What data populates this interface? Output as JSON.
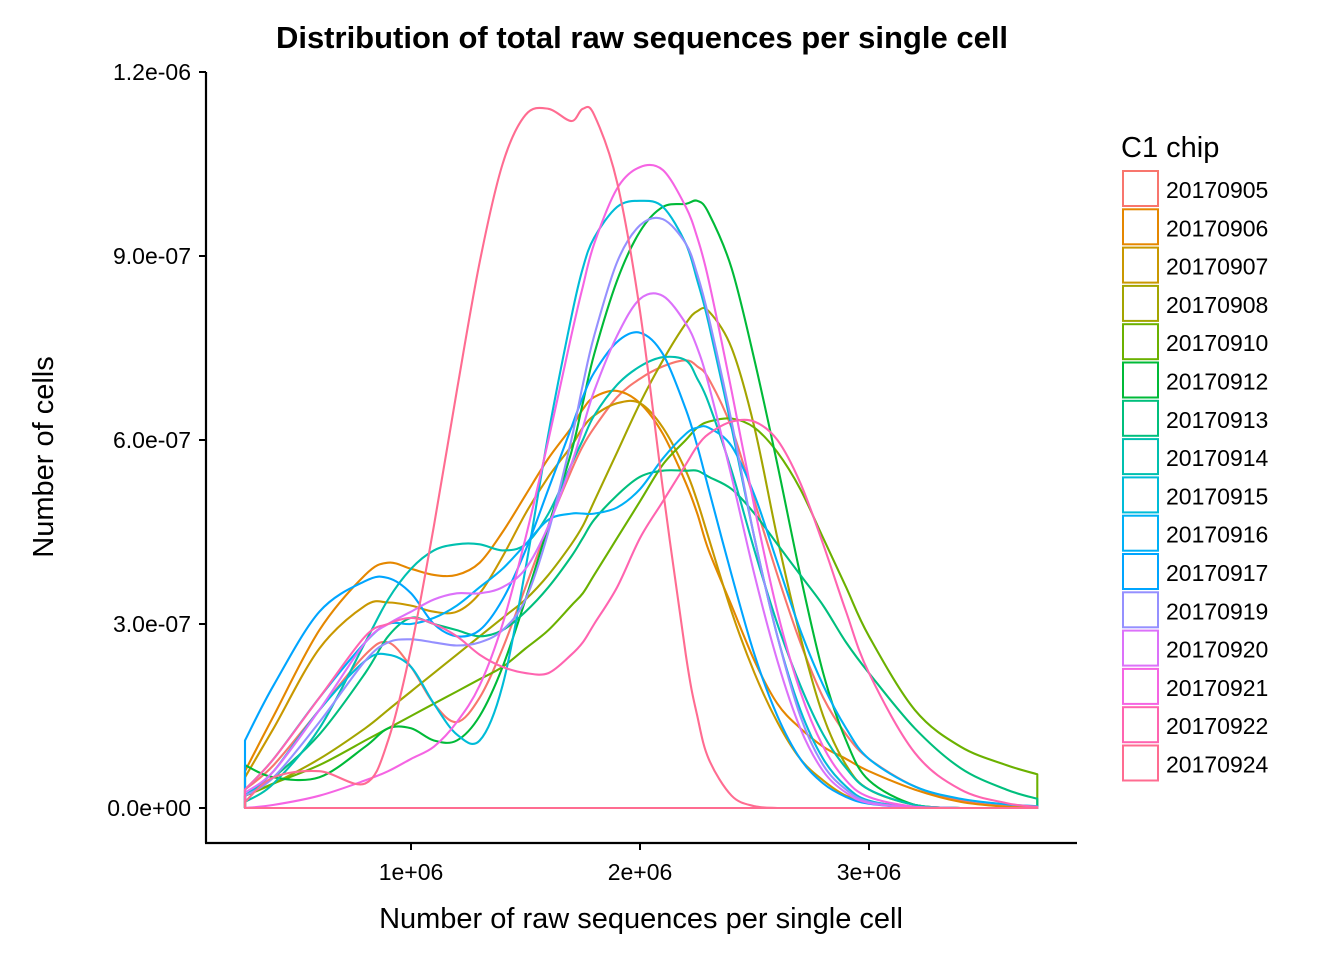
{
  "chart_data": {
    "type": "line",
    "subtype": "density",
    "title": "Distribution of total raw sequences per single cell",
    "xlabel": "Number of raw sequences per single cell",
    "ylabel": "Number of cells",
    "xlim": [
      275000,
      3735000
    ],
    "ylim": [
      0,
      1.2e-06
    ],
    "x_ticks": [
      1000000,
      2000000,
      3000000
    ],
    "x_tick_labels": [
      "1e+06",
      "2e+06",
      "3e+06"
    ],
    "y_ticks": [
      0,
      3e-07,
      6e-07,
      9e-07,
      1.2e-06
    ],
    "y_tick_labels": [
      "0.0e+00",
      "3.0e-07",
      "6.0e-07",
      "9.0e-07",
      "1.2e-06"
    ],
    "grid": false,
    "legend": {
      "title": "C1 chip",
      "position": "right"
    },
    "x_sample_unit": "1e6 sequences",
    "y_sample_unit": "1e-7",
    "x_samples": [
      0.275,
      0.4,
      0.6,
      0.8,
      0.9,
      1.0,
      1.1,
      1.2,
      1.3,
      1.4,
      1.5,
      1.6,
      1.7,
      1.75,
      1.8,
      1.9,
      2.0,
      2.1,
      2.2,
      2.25,
      2.3,
      2.4,
      2.5,
      2.6,
      2.7,
      2.8,
      2.9,
      3.0,
      3.2,
      3.4,
      3.6,
      3.735
    ],
    "series": [
      {
        "name": "20170905",
        "color": "#F8766D",
        "values": [
          0.3,
          0.7,
          1.6,
          2.5,
          2.7,
          2.3,
          1.7,
          1.4,
          1.8,
          2.6,
          3.6,
          4.6,
          5.5,
          5.9,
          6.2,
          6.7,
          7.0,
          7.2,
          7.3,
          7.2,
          7.0,
          6.2,
          5.0,
          3.8,
          2.7,
          1.8,
          1.2,
          0.8,
          0.35,
          0.12,
          0.03,
          0.0
        ]
      },
      {
        "name": "20170906",
        "color": "#E58700",
        "values": [
          0.6,
          1.5,
          2.9,
          3.8,
          4.0,
          3.9,
          3.8,
          3.8,
          4.0,
          4.5,
          5.1,
          5.7,
          6.2,
          6.5,
          6.7,
          6.8,
          6.6,
          6.1,
          5.3,
          4.8,
          4.2,
          3.3,
          2.4,
          1.7,
          1.3,
          1.0,
          0.8,
          0.6,
          0.3,
          0.1,
          0.02,
          0.0
        ]
      },
      {
        "name": "20170907",
        "color": "#C99800",
        "values": [
          0.5,
          1.3,
          2.6,
          3.3,
          3.35,
          3.3,
          3.2,
          3.2,
          3.5,
          4.1,
          4.8,
          5.4,
          5.9,
          6.2,
          6.4,
          6.6,
          6.6,
          6.2,
          5.5,
          5.0,
          4.4,
          3.2,
          2.2,
          1.4,
          0.8,
          0.45,
          0.2,
          0.1,
          0.02,
          0.0,
          0.0,
          0.0
        ]
      },
      {
        "name": "20170908",
        "color": "#A3A500",
        "values": [
          0.2,
          0.4,
          0.8,
          1.3,
          1.6,
          1.9,
          2.2,
          2.5,
          2.8,
          3.1,
          3.4,
          3.8,
          4.3,
          4.6,
          5.0,
          5.8,
          6.6,
          7.3,
          7.9,
          8.1,
          8.1,
          7.5,
          6.2,
          4.4,
          2.8,
          1.5,
          0.7,
          0.3,
          0.05,
          0.0,
          0.0,
          0.0
        ]
      },
      {
        "name": "20170910",
        "color": "#6BB100",
        "values": [
          0.2,
          0.4,
          0.7,
          1.1,
          1.3,
          1.5,
          1.7,
          1.9,
          2.1,
          2.3,
          2.6,
          2.9,
          3.3,
          3.5,
          3.8,
          4.4,
          5.0,
          5.6,
          6.0,
          6.2,
          6.3,
          6.35,
          6.2,
          5.8,
          5.2,
          4.4,
          3.6,
          2.8,
          1.6,
          1.0,
          0.7,
          0.55
        ]
      },
      {
        "name": "20170912",
        "color": "#00BA38",
        "values": [
          0.7,
          0.5,
          0.5,
          1.0,
          1.3,
          1.3,
          1.1,
          1.1,
          1.5,
          2.3,
          3.4,
          4.6,
          5.8,
          6.6,
          7.4,
          8.6,
          9.4,
          9.8,
          9.85,
          9.9,
          9.7,
          8.8,
          7.3,
          5.6,
          3.8,
          2.2,
          1.1,
          0.45,
          0.05,
          0.0,
          0.0,
          0.0
        ]
      },
      {
        "name": "20170913",
        "color": "#00BF7D",
        "values": [
          0.2,
          0.5,
          1.2,
          2.2,
          2.8,
          3.1,
          3.0,
          2.9,
          2.8,
          2.9,
          3.2,
          3.6,
          4.1,
          4.4,
          4.7,
          5.1,
          5.4,
          5.5,
          5.5,
          5.5,
          5.4,
          5.2,
          4.8,
          4.3,
          3.8,
          3.3,
          2.7,
          2.2,
          1.3,
          0.65,
          0.3,
          0.15
        ]
      },
      {
        "name": "20170914",
        "color": "#00C0AF",
        "values": [
          0.1,
          0.4,
          1.3,
          2.7,
          3.4,
          3.9,
          4.2,
          4.3,
          4.3,
          4.2,
          4.3,
          4.8,
          5.6,
          6.0,
          6.4,
          6.9,
          7.2,
          7.35,
          7.3,
          7.0,
          6.6,
          5.5,
          4.2,
          3.0,
          2.0,
          1.2,
          0.65,
          0.3,
          0.05,
          0.0,
          0.0,
          0.0
        ]
      },
      {
        "name": "20170915",
        "color": "#00BCD8",
        "values": [
          0.2,
          0.6,
          1.6,
          2.4,
          2.5,
          2.3,
          1.7,
          1.2,
          1.1,
          2.0,
          3.9,
          6.1,
          8.0,
          8.8,
          9.3,
          9.8,
          9.9,
          9.8,
          9.2,
          8.6,
          7.9,
          6.2,
          4.4,
          2.8,
          1.6,
          0.8,
          0.35,
          0.12,
          0.01,
          0.0,
          0.0,
          0.0
        ]
      },
      {
        "name": "20170916",
        "color": "#00B0F6",
        "values": [
          0.3,
          0.8,
          1.8,
          2.7,
          3.0,
          3.0,
          3.1,
          3.3,
          3.6,
          3.9,
          4.3,
          4.7,
          4.8,
          4.8,
          4.8,
          4.9,
          5.2,
          5.7,
          6.1,
          6.2,
          6.2,
          5.9,
          5.1,
          4.0,
          2.9,
          2.0,
          1.3,
          0.8,
          0.35,
          0.15,
          0.06,
          0.03
        ]
      },
      {
        "name": "20170917",
        "color": "#00A5FF",
        "values": [
          1.1,
          2.0,
          3.2,
          3.7,
          3.75,
          3.5,
          3.0,
          2.8,
          2.9,
          3.4,
          4.2,
          5.2,
          6.2,
          6.7,
          7.1,
          7.6,
          7.75,
          7.4,
          6.5,
          5.9,
          5.2,
          3.8,
          2.5,
          1.5,
          0.8,
          0.4,
          0.18,
          0.07,
          0.01,
          0.0,
          0.0,
          0.0
        ]
      },
      {
        "name": "20170919",
        "color": "#9590FF",
        "values": [
          0.2,
          0.5,
          1.4,
          2.4,
          2.7,
          2.75,
          2.7,
          2.65,
          2.7,
          2.9,
          3.4,
          4.5,
          6.0,
          6.9,
          7.7,
          8.9,
          9.5,
          9.6,
          9.2,
          8.7,
          8.0,
          6.3,
          4.4,
          2.8,
          1.5,
          0.7,
          0.3,
          0.1,
          0.01,
          0.0,
          0.0,
          0.0
        ]
      },
      {
        "name": "20170920",
        "color": "#DC71FA",
        "values": [
          0.25,
          0.6,
          1.6,
          2.7,
          3.0,
          3.2,
          3.4,
          3.5,
          3.5,
          3.6,
          3.9,
          4.6,
          5.6,
          6.2,
          6.8,
          7.7,
          8.3,
          8.35,
          7.9,
          7.5,
          6.9,
          5.4,
          3.8,
          2.4,
          1.3,
          0.6,
          0.25,
          0.08,
          0.01,
          0.0,
          0.0,
          0.0
        ]
      },
      {
        "name": "20170921",
        "color": "#F564E3",
        "values": [
          0.0,
          0.05,
          0.2,
          0.45,
          0.6,
          0.8,
          1.0,
          1.4,
          2.0,
          3.0,
          4.4,
          6.0,
          7.7,
          8.5,
          9.2,
          10.1,
          10.45,
          10.4,
          9.8,
          9.3,
          8.6,
          6.8,
          4.9,
          3.2,
          1.9,
          1.0,
          0.45,
          0.18,
          0.02,
          0.0,
          0.0,
          0.0
        ]
      },
      {
        "name": "20170922",
        "color": "#FF64B0",
        "values": [
          0.3,
          0.8,
          1.8,
          2.8,
          3.0,
          3.1,
          3.0,
          2.8,
          2.5,
          2.3,
          2.2,
          2.2,
          2.5,
          2.7,
          3.0,
          3.6,
          4.4,
          5.0,
          5.6,
          5.9,
          6.1,
          6.3,
          6.3,
          6.0,
          5.3,
          4.3,
          3.2,
          2.2,
          0.9,
          0.3,
          0.08,
          0.02
        ]
      },
      {
        "name": "20170924",
        "color": "#FF6C91",
        "values": [
          0.1,
          0.5,
          0.6,
          0.4,
          1.1,
          2.6,
          4.6,
          6.8,
          8.9,
          10.5,
          11.3,
          11.4,
          11.2,
          11.4,
          11.3,
          10.2,
          8.1,
          5.2,
          2.5,
          1.5,
          0.8,
          0.2,
          0.03,
          0.0,
          0.0,
          0.0,
          0.0,
          0.0,
          0.0,
          0.0,
          0.0,
          0.0
        ]
      }
    ]
  }
}
